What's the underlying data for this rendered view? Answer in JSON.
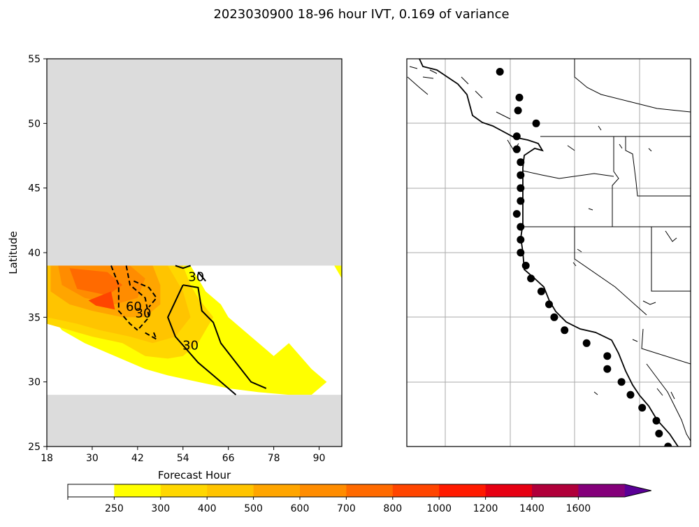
{
  "figure": {
    "title": "2023030900 18-96 hour IVT, 0.169 of variance"
  },
  "chart_data": [
    {
      "type": "contour",
      "panel": "left",
      "xlabel": "Forecast Hour",
      "ylabel": "Latitude",
      "xlim": [
        18,
        96
      ],
      "ylim": [
        25,
        55
      ],
      "xticks": [
        18,
        30,
        42,
        54,
        66,
        78,
        90
      ],
      "yticks": [
        25,
        30,
        35,
        40,
        45,
        50,
        55
      ],
      "masked_regions": [
        {
          "lat_range": [
            39,
            55
          ],
          "color": "#dcdcdc"
        },
        {
          "lat_range": [
            25,
            29
          ],
          "color": "#dcdcdc"
        }
      ],
      "filled_contours": [
        {
          "level": 250,
          "color": "#ffff00",
          "points": [
            [
              18,
              39
            ],
            [
              94,
              39
            ],
            [
              96,
              38
            ],
            [
              96,
              39
            ],
            [
              18,
              39
            ],
            [
              18,
              35.5
            ],
            [
              22,
              34
            ],
            [
              28,
              33
            ],
            [
              36,
              32
            ],
            [
              44,
              31
            ],
            [
              50,
              30.5
            ],
            [
              58,
              30
            ],
            [
              66,
              29.5
            ],
            [
              74,
              29.2
            ],
            [
              82,
              29
            ],
            [
              88,
              29
            ],
            [
              92,
              30
            ],
            [
              88,
              31
            ],
            [
              82,
              33
            ],
            [
              78,
              32
            ],
            [
              74,
              33
            ],
            [
              70,
              34
            ],
            [
              66,
              35
            ],
            [
              64,
              36
            ],
            [
              60,
              37
            ],
            [
              58,
              38
            ],
            [
              56,
              39
            ]
          ]
        },
        {
          "level": 300,
          "color": "#ffd700",
          "points": [
            [
              18,
              39
            ],
            [
              54,
              39
            ],
            [
              56,
              37.5
            ],
            [
              58,
              36.5
            ],
            [
              62,
              35
            ],
            [
              60,
              34
            ],
            [
              58,
              33
            ],
            [
              54,
              32
            ],
            [
              50,
              31.8
            ],
            [
              44,
              32
            ],
            [
              38,
              33
            ],
            [
              30,
              33.5
            ],
            [
              24,
              34
            ],
            [
              18,
              34.5
            ]
          ]
        },
        {
          "level": 400,
          "color": "#ffc400",
          "points": [
            [
              18,
              39
            ],
            [
              50,
              39
            ],
            [
              54,
              37
            ],
            [
              56,
              35
            ],
            [
              52,
              33.5
            ],
            [
              46,
              33
            ],
            [
              40,
              33.5
            ],
            [
              32,
              34
            ],
            [
              26,
              34.5
            ],
            [
              18,
              35
            ]
          ]
        },
        {
          "level": 500,
          "color": "#ffa500",
          "points": [
            [
              19,
              39
            ],
            [
              46,
              39
            ],
            [
              48,
              37.5
            ],
            [
              48,
              36
            ],
            [
              44,
              35
            ],
            [
              38,
              35
            ],
            [
              30,
              35.5
            ],
            [
              24,
              36
            ],
            [
              19,
              37
            ]
          ]
        },
        {
          "level": 600,
          "color": "#ff8c00",
          "points": [
            [
              21,
              39
            ],
            [
              40,
              39
            ],
            [
              44,
              38
            ],
            [
              42,
              36.5
            ],
            [
              36,
              36
            ],
            [
              28,
              36.5
            ],
            [
              22,
              37.5
            ]
          ]
        },
        {
          "level": 700,
          "color": "#ff6a00",
          "points": [
            [
              24,
              38.8
            ],
            [
              34,
              38.5
            ],
            [
              38,
              37.5
            ],
            [
              34,
              36.7
            ],
            [
              26,
              37.2
            ]
          ]
        },
        {
          "level": 800,
          "color": "#ff4500",
          "points": [
            [
              29,
              36.3
            ],
            [
              35,
              37.0
            ],
            [
              36,
              35.6
            ],
            [
              31,
              35.9
            ]
          ]
        }
      ],
      "line_contours": [
        {
          "label": "30",
          "style": "solid",
          "points": [
            [
              54,
              37.5
            ],
            [
              58,
              37.3
            ],
            [
              59,
              35.5
            ],
            [
              62,
              34.6
            ],
            [
              64,
              33
            ],
            [
              68,
              31.5
            ],
            [
              72,
              30
            ],
            [
              76,
              29.5
            ]
          ]
        },
        {
          "label": "30",
          "style": "solid",
          "points": [
            [
              54,
              37.5
            ],
            [
              50,
              35
            ],
            [
              52,
              33.5
            ],
            [
              55,
              32.5
            ],
            [
              58,
              31.5
            ],
            [
              62,
              30.5
            ],
            [
              66,
              29.5
            ],
            [
              68,
              29
            ]
          ]
        },
        {
          "label": "",
          "style": "solid",
          "points": [
            [
              58,
              38.5
            ],
            [
              60,
              37.8
            ]
          ]
        },
        {
          "label": "",
          "style": "solid",
          "points": [
            [
              52,
              39
            ],
            [
              54,
              38.8
            ],
            [
              56,
              39
            ]
          ]
        },
        {
          "label": "",
          "style": "dashed",
          "points": [
            [
              35,
              39
            ],
            [
              37,
              37.5
            ],
            [
              37,
              35.5
            ],
            [
              40,
              34.5
            ],
            [
              42,
              34
            ]
          ]
        },
        {
          "label": "",
          "style": "dashed",
          "points": [
            [
              39,
              39
            ],
            [
              40,
              37.5
            ],
            [
              44,
              36.5
            ],
            [
              45,
              35
            ],
            [
              42,
              34
            ]
          ]
        },
        {
          "label": "",
          "style": "dashed",
          "points": [
            [
              41,
              37.8
            ],
            [
              45,
              37.3
            ],
            [
              47,
              36.5
            ],
            [
              45,
              35.8
            ]
          ]
        },
        {
          "label": "",
          "style": "dashed",
          "points": [
            [
              44,
              33.8
            ],
            [
              47,
              33.3
            ],
            [
              46,
              34.0
            ]
          ]
        }
      ],
      "contour_labels": [
        {
          "text": "30",
          "x": 57.5,
          "y": 37.8
        },
        {
          "text": "30",
          "x": 56,
          "y": 32.5
        },
        {
          "text": "60",
          "x": 41,
          "y": 35.5
        },
        {
          "text": "30",
          "x": 43.5,
          "y": 35.0
        }
      ]
    },
    {
      "type": "map",
      "panel": "right",
      "region": "U.S. West Coast",
      "points_label": "Coastal sites",
      "points": [
        [
          -125.8,
          54.0
        ],
        [
          -124.3,
          52.0
        ],
        [
          -124.4,
          51.0
        ],
        [
          -123.0,
          50.0
        ],
        [
          -124.5,
          49.0
        ],
        [
          -124.5,
          48.0
        ],
        [
          -124.2,
          47.0
        ],
        [
          -124.2,
          46.0
        ],
        [
          -124.2,
          45.0
        ],
        [
          -124.2,
          44.0
        ],
        [
          -124.5,
          43.0
        ],
        [
          -124.2,
          42.0
        ],
        [
          -124.2,
          41.0
        ],
        [
          -124.2,
          40.0
        ],
        [
          -123.8,
          39.0
        ],
        [
          -123.4,
          38.0
        ],
        [
          -122.6,
          37.0
        ],
        [
          -122.0,
          36.0
        ],
        [
          -121.6,
          35.0
        ],
        [
          -120.8,
          34.0
        ],
        [
          -119.1,
          33.0
        ],
        [
          -117.5,
          32.0
        ],
        [
          -117.5,
          31.0
        ],
        [
          -116.4,
          30.0
        ],
        [
          -115.7,
          29.0
        ],
        [
          -114.8,
          28.0
        ],
        [
          -113.7,
          27.0
        ],
        [
          -113.5,
          26.0
        ],
        [
          -112.8,
          25.0
        ]
      ]
    }
  ],
  "colorbar": {
    "levels": [
      "250",
      "300",
      "400",
      "500",
      "600",
      "700",
      "800",
      "1000",
      "1200",
      "1400",
      "1600"
    ],
    "colors": [
      "#ffffff",
      "#ffff00",
      "#ffd700",
      "#ffc400",
      "#ffa500",
      "#ff8c00",
      "#ff6a00",
      "#ff4500",
      "#ff1a00",
      "#e60012",
      "#b0003a",
      "#84007a",
      "#5a0096"
    ],
    "extend_color": "#5a0096"
  }
}
